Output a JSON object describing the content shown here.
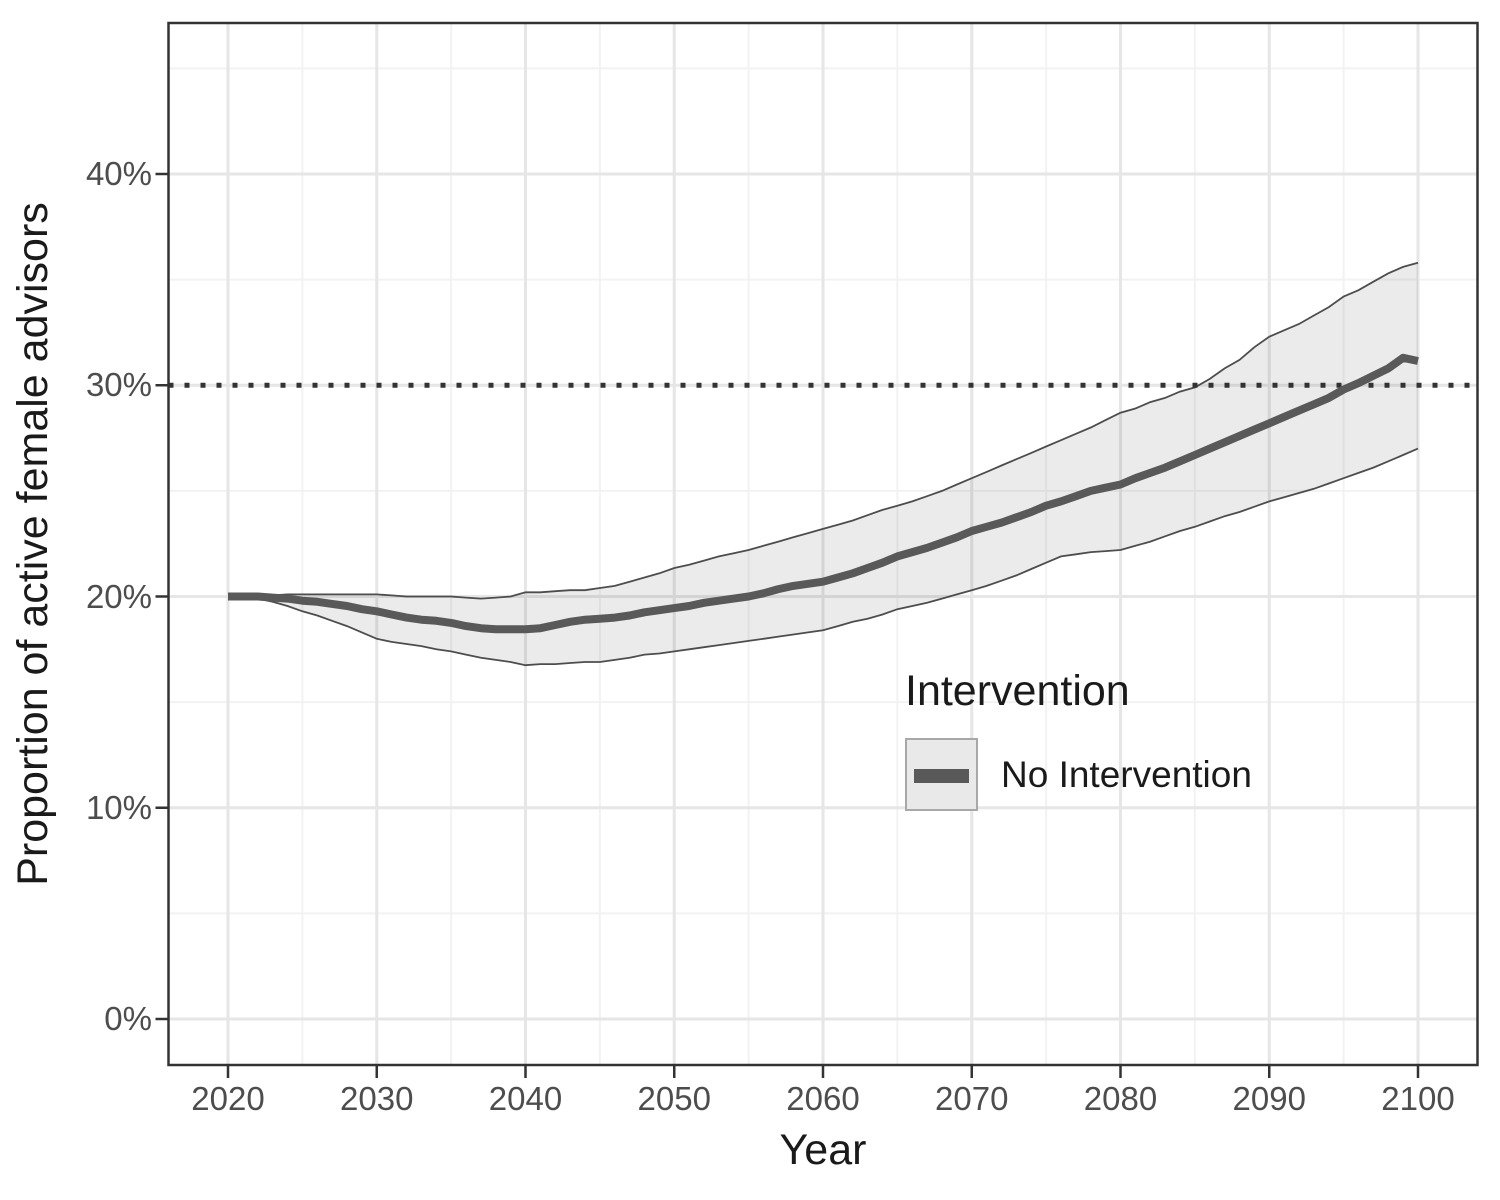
{
  "chart_data": {
    "type": "line",
    "title": "",
    "xlabel": "Year",
    "ylabel": "Proportion of active female advisors",
    "x_ticks": [
      "2020",
      "2030",
      "2040",
      "2050",
      "2060",
      "2070",
      "2080",
      "2090",
      "2100"
    ],
    "x_tick_values": [
      2020,
      2030,
      2040,
      2050,
      2060,
      2070,
      2080,
      2090,
      2100
    ],
    "y_ticks": [
      "0%",
      "10%",
      "20%",
      "30%",
      "40%"
    ],
    "y_tick_values": [
      0,
      10,
      20,
      30,
      40
    ],
    "xlim": [
      2020,
      2100
    ],
    "ylim_pct": [
      0,
      45
    ],
    "grid": "major and minor, light grey on white, dark panel border",
    "reference_line": {
      "y_pct": 30,
      "style": "dotted"
    },
    "legend": {
      "title": "Intervention",
      "position": "inside-lower-right",
      "entries": [
        {
          "label": "No Intervention"
        }
      ]
    },
    "series": [
      {
        "name": "No Intervention",
        "x": [
          2020,
          2021,
          2022,
          2023,
          2024,
          2025,
          2026,
          2027,
          2028,
          2029,
          2030,
          2031,
          2032,
          2033,
          2034,
          2035,
          2036,
          2037,
          2038,
          2039,
          2040,
          2041,
          2042,
          2043,
          2044,
          2045,
          2046,
          2047,
          2048,
          2049,
          2050,
          2051,
          2052,
          2053,
          2054,
          2055,
          2056,
          2057,
          2058,
          2059,
          2060,
          2061,
          2062,
          2063,
          2064,
          2065,
          2066,
          2067,
          2068,
          2069,
          2070,
          2071,
          2072,
          2073,
          2074,
          2075,
          2076,
          2077,
          2078,
          2079,
          2080,
          2081,
          2082,
          2083,
          2084,
          2085,
          2086,
          2087,
          2088,
          2089,
          2090,
          2091,
          2092,
          2093,
          2094,
          2095,
          2096,
          2097,
          2098,
          2099,
          2100
        ],
        "y_pct": [
          20,
          20,
          20,
          19.95,
          19.9,
          19.8,
          19.75,
          19.65,
          19.55,
          19.4,
          19.3,
          19.15,
          19,
          18.9,
          18.85,
          18.75,
          18.6,
          18.5,
          18.45,
          18.45,
          18.45,
          18.5,
          18.65,
          18.8,
          18.9,
          18.95,
          19,
          19.1,
          19.25,
          19.35,
          19.45,
          19.55,
          19.7,
          19.8,
          19.9,
          20,
          20.15,
          20.35,
          20.5,
          20.6,
          20.7,
          20.9,
          21.1,
          21.35,
          21.6,
          21.9,
          22.1,
          22.3,
          22.55,
          22.8,
          23.1,
          23.3,
          23.5,
          23.75,
          24,
          24.3,
          24.5,
          24.75,
          25,
          25.15,
          25.3,
          25.6,
          25.85,
          26.1,
          26.4,
          26.7,
          27,
          27.3,
          27.6,
          27.9,
          28.2,
          28.5,
          28.8,
          29.1,
          29.4,
          29.8,
          30.1,
          30.45,
          30.8,
          31.3,
          31.15
        ],
        "lower_pct": [
          20,
          19.95,
          19.9,
          19.75,
          19.55,
          19.3,
          19.1,
          18.85,
          18.6,
          18.3,
          18,
          17.85,
          17.75,
          17.65,
          17.5,
          17.4,
          17.25,
          17.1,
          17,
          16.9,
          16.75,
          16.8,
          16.8,
          16.85,
          16.9,
          16.9,
          17,
          17.1,
          17.25,
          17.3,
          17.4,
          17.5,
          17.6,
          17.7,
          17.8,
          17.9,
          18,
          18.1,
          18.2,
          18.3,
          18.4,
          18.6,
          18.8,
          18.95,
          19.15,
          19.4,
          19.55,
          19.7,
          19.9,
          20.1,
          20.3,
          20.5,
          20.75,
          21,
          21.3,
          21.6,
          21.9,
          22,
          22.1,
          22.15,
          22.2,
          22.4,
          22.6,
          22.85,
          23.1,
          23.3,
          23.55,
          23.8,
          24,
          24.25,
          24.5,
          24.7,
          24.9,
          25.1,
          25.35,
          25.6,
          25.85,
          26.1,
          26.4,
          26.7,
          27
        ],
        "upper_pct": [
          20,
          20,
          20.05,
          20.05,
          20.1,
          20.1,
          20.1,
          20.1,
          20.1,
          20.1,
          20.1,
          20.05,
          20,
          20,
          20,
          20,
          19.95,
          19.9,
          19.95,
          20,
          20.2,
          20.2,
          20.25,
          20.3,
          20.3,
          20.4,
          20.5,
          20.7,
          20.9,
          21.1,
          21.35,
          21.5,
          21.7,
          21.9,
          22.05,
          22.2,
          22.4,
          22.6,
          22.8,
          23,
          23.2,
          23.4,
          23.6,
          23.85,
          24.1,
          24.3,
          24.5,
          24.75,
          25,
          25.3,
          25.6,
          25.9,
          26.2,
          26.5,
          26.8,
          27.1,
          27.4,
          27.7,
          28,
          28.35,
          28.7,
          28.9,
          29.2,
          29.4,
          29.7,
          29.9,
          30.3,
          30.8,
          31.2,
          31.8,
          32.3,
          32.6,
          32.9,
          33.3,
          33.7,
          34.2,
          34.5,
          34.9,
          35.3,
          35.6,
          35.8
        ]
      }
    ],
    "colors": {
      "line": "#595959",
      "ribbon_fill": "#000000",
      "ribbon_fill_opacity": "0.08",
      "ribbon_edge": "#4d4d4d",
      "grid_major": "#e6e6e6",
      "grid_minor": "#f2f2f2",
      "panel_border": "#333333",
      "tick_mark": "#333333",
      "tick_label": "#4d4d4d",
      "axis_title": "#1a1a1a",
      "reference_line": "#333333",
      "legend_key_fill": "#e9e9e9",
      "legend_key_border": "#a8a8a8",
      "background": "#ffffff"
    }
  }
}
